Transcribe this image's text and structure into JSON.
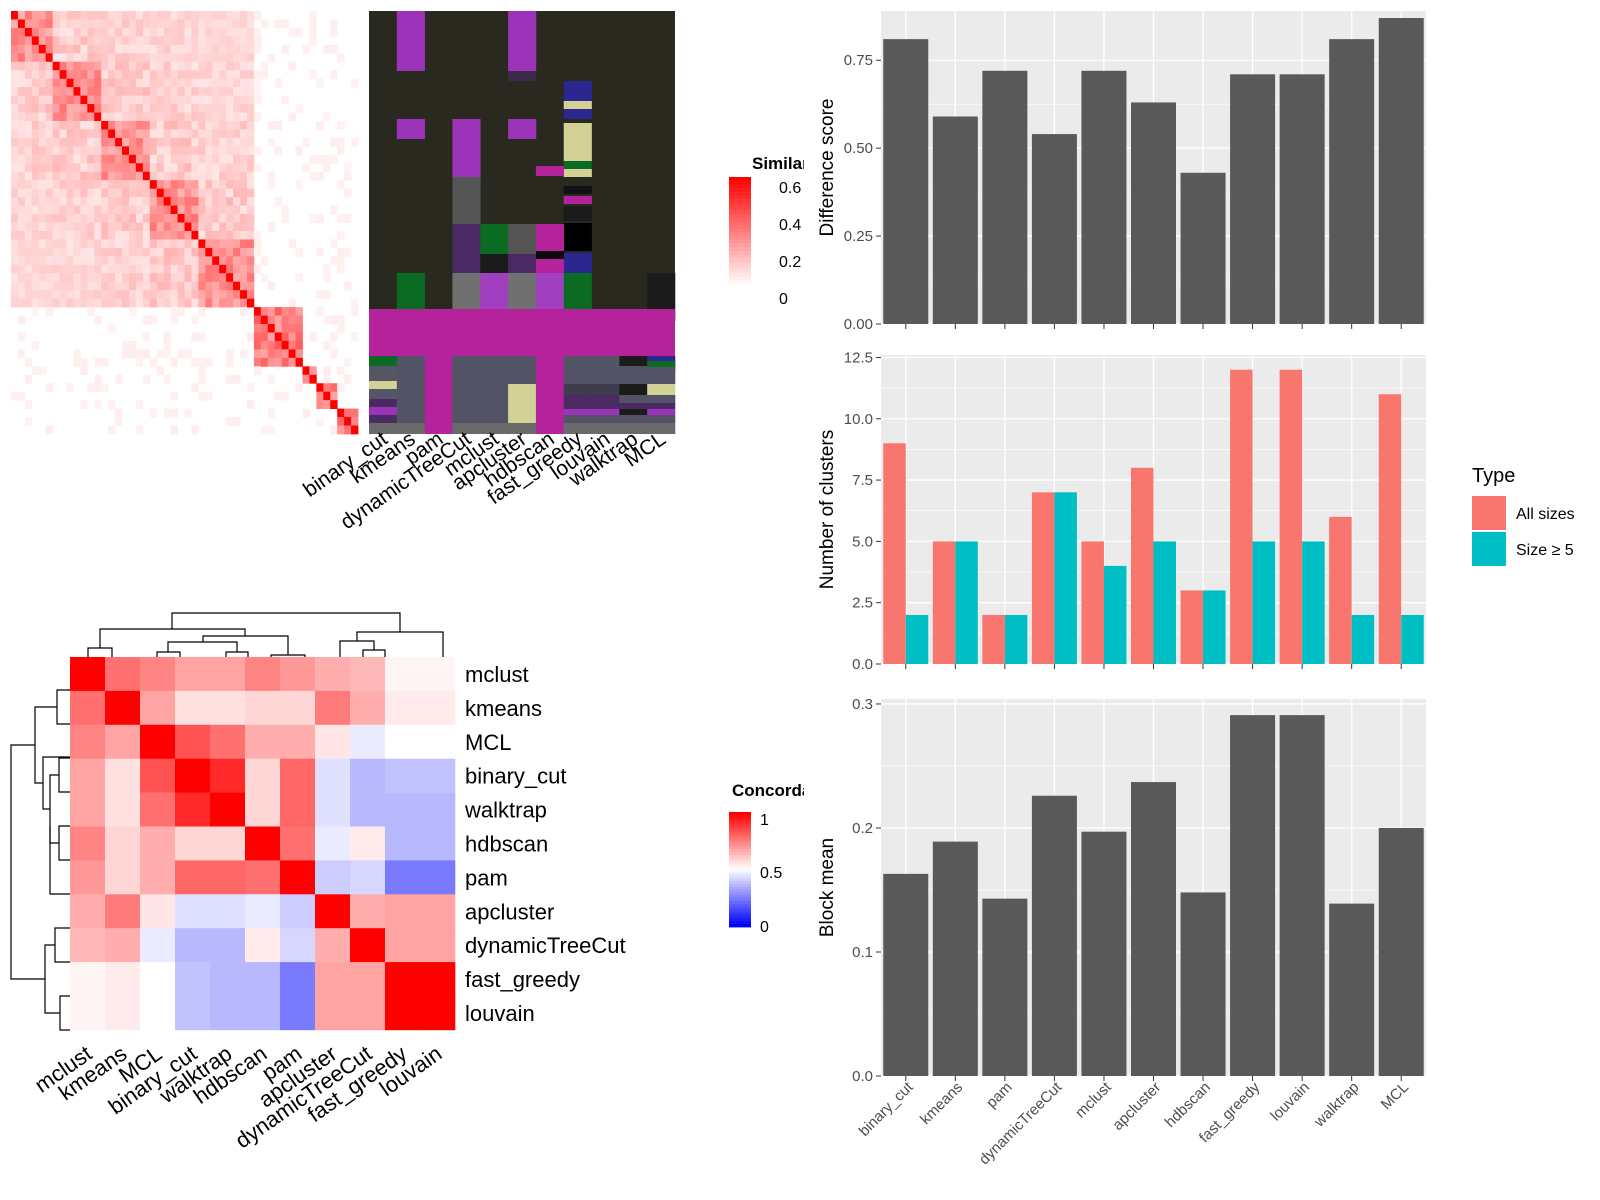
{
  "methods": [
    "binary_cut",
    "kmeans",
    "pam",
    "dynamicTreeCut",
    "mclust",
    "apcluster",
    "hdbscan",
    "fast_greedy",
    "louvain",
    "walktrap",
    "MCL"
  ],
  "similarity_legend": {
    "title": "Similarity",
    "ticks": [
      "0.6",
      "0.4",
      "0.2",
      "0"
    ]
  },
  "concordance_legend": {
    "title": "Concordance",
    "ticks": [
      "1",
      "0.5",
      "0"
    ]
  },
  "type_legend": {
    "title": "Type",
    "items": [
      "All sizes",
      "Size ≥ 5"
    ]
  },
  "colors": {
    "bar": "#595959",
    "all_sizes": "#F8766D",
    "size5": "#00BFC4",
    "panel_bg": "#EBEBEB",
    "grid": "#FFFFFF",
    "heat_high": "#FF0000",
    "heat_mid": "#FFFFFF",
    "heat_low": "#0000FF",
    "cluster_bg": "#29291F",
    "cluster_magenta": "#B4239B"
  },
  "concordance_heatmap": {
    "row_order": [
      "mclust",
      "kmeans",
      "MCL",
      "binary_cut",
      "walktrap",
      "hdbscan",
      "pam",
      "apcluster",
      "dynamicTreeCut",
      "fast_greedy",
      "louvain"
    ],
    "col_order": [
      "mclust",
      "kmeans",
      "MCL",
      "binary_cut",
      "walktrap",
      "hdbscan",
      "pam",
      "apcluster",
      "dynamicTreeCut",
      "fast_greedy",
      "louvain"
    ],
    "matrix": [
      [
        1.0,
        0.78,
        0.74,
        0.68,
        0.68,
        0.74,
        0.7,
        0.66,
        0.64,
        0.52,
        0.52
      ],
      [
        0.78,
        1.0,
        0.68,
        0.56,
        0.56,
        0.58,
        0.58,
        0.76,
        0.66,
        0.54,
        0.54
      ],
      [
        0.74,
        0.68,
        1.0,
        0.84,
        0.78,
        0.66,
        0.66,
        0.55,
        0.46,
        0.5,
        0.5
      ],
      [
        0.68,
        0.56,
        0.84,
        1.0,
        0.92,
        0.58,
        0.8,
        0.44,
        0.36,
        0.38,
        0.38
      ],
      [
        0.68,
        0.56,
        0.78,
        0.92,
        1.0,
        0.58,
        0.8,
        0.44,
        0.36,
        0.36,
        0.36
      ],
      [
        0.74,
        0.58,
        0.66,
        0.58,
        0.58,
        1.0,
        0.78,
        0.46,
        0.54,
        0.36,
        0.36
      ],
      [
        0.7,
        0.58,
        0.66,
        0.8,
        0.8,
        0.78,
        1.0,
        0.4,
        0.42,
        0.24,
        0.24
      ],
      [
        0.66,
        0.76,
        0.55,
        0.44,
        0.44,
        0.46,
        0.4,
        1.0,
        0.66,
        0.68,
        0.68
      ],
      [
        0.64,
        0.66,
        0.46,
        0.36,
        0.36,
        0.54,
        0.42,
        0.66,
        1.0,
        0.68,
        0.68
      ],
      [
        0.52,
        0.54,
        0.5,
        0.38,
        0.36,
        0.36,
        0.24,
        0.68,
        0.68,
        1.0,
        1.0
      ],
      [
        0.52,
        0.54,
        0.5,
        0.38,
        0.36,
        0.36,
        0.24,
        0.68,
        0.68,
        1.0,
        1.0
      ]
    ]
  },
  "chart_data": [
    {
      "type": "bar",
      "ylabel": "Difference score",
      "ylim": [
        0,
        0.89
      ],
      "yticks": [
        0,
        0.25,
        0.5,
        0.75
      ],
      "ytick_labels": [
        "0.00",
        "0.25",
        "0.50",
        "0.75"
      ],
      "categories": [
        "binary_cut",
        "kmeans",
        "pam",
        "dynamicTreeCut",
        "mclust",
        "apcluster",
        "hdbscan",
        "fast_greedy",
        "louvain",
        "walktrap",
        "MCL"
      ],
      "values": [
        0.81,
        0.59,
        0.72,
        0.54,
        0.72,
        0.63,
        0.43,
        0.71,
        0.71,
        0.81,
        0.87
      ]
    },
    {
      "type": "bar",
      "ylabel": "Number of clusters",
      "ylim": [
        0,
        12.6
      ],
      "yticks": [
        0,
        2.5,
        5,
        7.5,
        10,
        12.5
      ],
      "ytick_labels": [
        "0.0",
        "2.5",
        "5.0",
        "7.5",
        "10.0",
        "12.5"
      ],
      "categories": [
        "binary_cut",
        "kmeans",
        "pam",
        "dynamicTreeCut",
        "mclust",
        "apcluster",
        "hdbscan",
        "fast_greedy",
        "louvain",
        "walktrap",
        "MCL"
      ],
      "series": [
        {
          "name": "All sizes",
          "values": [
            9,
            5,
            2,
            7,
            5,
            8,
            3,
            12,
            12,
            6,
            11
          ]
        },
        {
          "name": "Size ≥ 5",
          "values": [
            2,
            5,
            2,
            7,
            4,
            5,
            3,
            5,
            5,
            2,
            2
          ]
        }
      ]
    },
    {
      "type": "bar",
      "ylabel": "Block mean",
      "ylim": [
        0,
        0.304
      ],
      "yticks": [
        0,
        0.1,
        0.2,
        0.3
      ],
      "ytick_labels": [
        "0.0",
        "0.1",
        "0.2",
        "0.3"
      ],
      "categories": [
        "binary_cut",
        "kmeans",
        "pam",
        "dynamicTreeCut",
        "mclust",
        "apcluster",
        "hdbscan",
        "fast_greedy",
        "louvain",
        "walktrap",
        "MCL"
      ],
      "values": [
        0.163,
        0.189,
        0.143,
        0.226,
        0.197,
        0.237,
        0.148,
        0.291,
        0.291,
        0.139,
        0.2
      ]
    }
  ]
}
